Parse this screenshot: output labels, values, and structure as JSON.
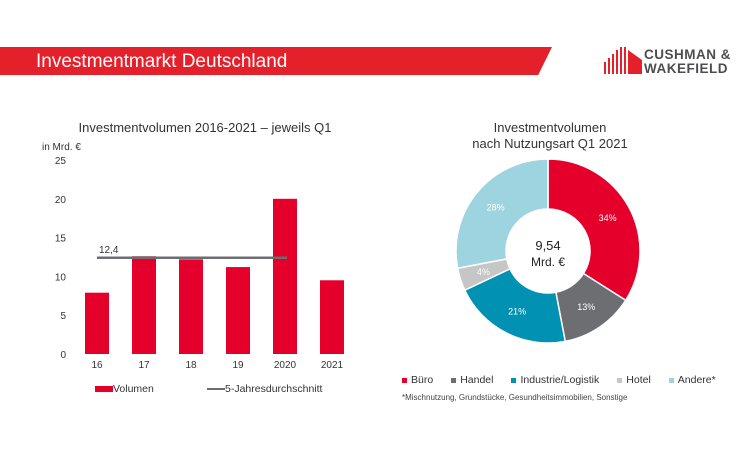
{
  "header": {
    "title": "Investmentmarkt Deutschland",
    "logo_line1": "CUSHMAN &",
    "logo_line2": "WAKEFIELD"
  },
  "chart_data": [
    {
      "type": "bar",
      "title": "Investmentvolumen 2016-2021 – jeweils Q1",
      "ylabel": "in Mrd. €",
      "categories": [
        "16",
        "17",
        "18",
        "19",
        "2020",
        "2021"
      ],
      "series": [
        {
          "name": "Volumen",
          "values": [
            7.9,
            12.6,
            12.2,
            11.2,
            20.0,
            9.5
          ],
          "color": "#e4002b"
        }
      ],
      "reference_line": {
        "name": "5-Jahresdurchschnitt",
        "value": 12.4,
        "label": "12,4",
        "color": "#6d6e71"
      },
      "ylim": [
        0,
        25
      ],
      "yticks": [
        "0",
        "5",
        "10",
        "15",
        "20",
        "25"
      ],
      "grid": false,
      "legend": "bottom"
    },
    {
      "type": "pie",
      "title_line1": "Investmentvolumen",
      "title_line2": "nach Nutzungsart Q1 2021",
      "center_value": "9,54",
      "center_unit": "Mrd. €",
      "slices": [
        {
          "label": "Büro",
          "value": 34,
          "text": "34%",
          "color": "#e4002b"
        },
        {
          "label": "Handel",
          "value": 13,
          "text": "13%",
          "color": "#6d6e71"
        },
        {
          "label": "Industrie/Logistik",
          "value": 21,
          "text": "21%",
          "color": "#0091b3"
        },
        {
          "label": "Hotel",
          "value": 4,
          "text": "4%",
          "color": "#c6c6c6"
        },
        {
          "label": "Andere*",
          "value": 28,
          "text": "28%",
          "color": "#9dd4df"
        }
      ],
      "footnote": "*Mischnutzung, Grundstücke, Gesundheitsimmobilien, Sonstige",
      "legend": "bottom"
    }
  ]
}
